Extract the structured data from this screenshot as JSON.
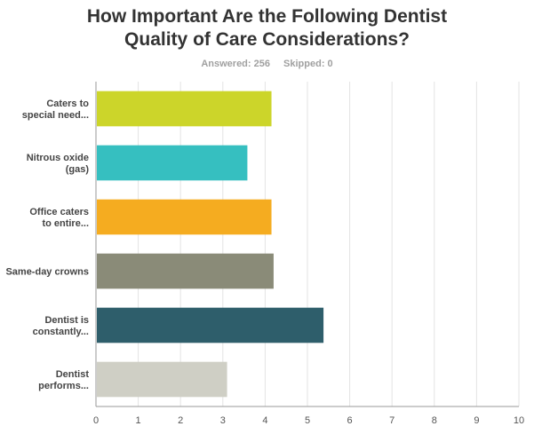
{
  "header": {
    "title_line1": "How Important Are the Following Dentist",
    "title_line2": "Quality of Care Considerations?",
    "answered": "Answered: 256",
    "skipped": "Skipped: 0"
  },
  "chart_data": {
    "type": "bar",
    "orientation": "horizontal",
    "categories": [
      [
        "Caters to",
        "special need..."
      ],
      [
        "Nitrous oxide",
        "(gas)"
      ],
      [
        "Office caters",
        "to entire..."
      ],
      [
        "Same-day crowns"
      ],
      [
        "Dentist is",
        "constantly..."
      ],
      [
        "Dentist",
        "performs..."
      ]
    ],
    "values": [
      4.15,
      3.58,
      4.15,
      4.2,
      5.38,
      3.1
    ],
    "colors": [
      "#ccd52a",
      "#36bfc0",
      "#f5ac20",
      "#8a8b78",
      "#2e5e6b",
      "#cfcfc5"
    ],
    "xlim": [
      0,
      10
    ],
    "xticks": [
      "0",
      "1",
      "2",
      "3",
      "4",
      "5",
      "6",
      "7",
      "8",
      "9",
      "10"
    ],
    "grid": true,
    "legend": "none"
  }
}
